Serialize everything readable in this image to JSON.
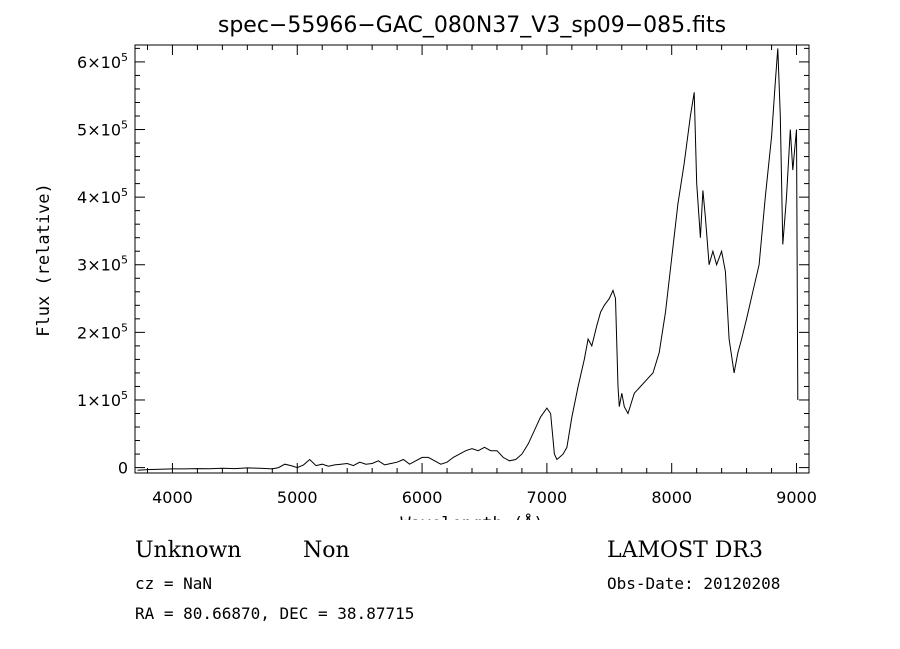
{
  "chart_data": {
    "type": "line",
    "title": "spec−55966−GAC_080N37_V3_sp09−085.fits",
    "xlabel": "Wavelength (Å)",
    "ylabel": "Flux (relative)",
    "xlim": [
      3700,
      9100
    ],
    "ylim": [
      -8000,
      625000
    ],
    "x_ticks": [
      {
        "value": 4000,
        "label": "4000"
      },
      {
        "value": 5000,
        "label": "5000"
      },
      {
        "value": 6000,
        "label": "6000"
      },
      {
        "value": 7000,
        "label": "7000"
      },
      {
        "value": 8000,
        "label": "8000"
      },
      {
        "value": 9000,
        "label": "9000"
      }
    ],
    "y_ticks": [
      {
        "value": 0,
        "mantissa": "0",
        "exp": ""
      },
      {
        "value": 100000,
        "mantissa": "1×10",
        "exp": "5"
      },
      {
        "value": 200000,
        "mantissa": "2×10",
        "exp": "5"
      },
      {
        "value": 300000,
        "mantissa": "3×10",
        "exp": "5"
      },
      {
        "value": 400000,
        "mantissa": "4×10",
        "exp": "5"
      },
      {
        "value": 500000,
        "mantissa": "5×10",
        "exp": "5"
      },
      {
        "value": 600000,
        "mantissa": "6×10",
        "exp": "5"
      }
    ],
    "grid": false,
    "series": [
      {
        "x": [
          3720,
          3800,
          3900,
          4000,
          4100,
          4200,
          4300,
          4400,
          4500,
          4600,
          4700,
          4800,
          4850,
          4900,
          4950,
          5000,
          5050,
          5100,
          5150,
          5200,
          5250,
          5300,
          5350,
          5400,
          5450,
          5500,
          5550,
          5600,
          5650,
          5700,
          5750,
          5800,
          5850,
          5900,
          5950,
          6000,
          6050,
          6100,
          6150,
          6200,
          6250,
          6300,
          6350,
          6400,
          6450,
          6500,
          6550,
          6600,
          6650,
          6700,
          6750,
          6800,
          6850,
          6900,
          6950,
          7000,
          7030,
          7060,
          7080,
          7100,
          7130,
          7160,
          7200,
          7250,
          7300,
          7330,
          7360,
          7400,
          7430,
          7460,
          7500,
          7530,
          7550,
          7570,
          7580,
          7600,
          7620,
          7650,
          7700,
          7750,
          7800,
          7850,
          7900,
          7950,
          8000,
          8050,
          8100,
          8150,
          8180,
          8200,
          8230,
          8250,
          8270,
          8300,
          8330,
          8360,
          8400,
          8430,
          8460,
          8500,
          8530,
          8560,
          8600,
          8650,
          8700,
          8750,
          8800,
          8830,
          8850,
          8870,
          8890,
          8920,
          8950,
          8970,
          9000,
          9010
        ],
        "y": [
          -4000,
          -3000,
          -2500,
          -2000,
          -2000,
          -1500,
          -1800,
          -1000,
          -1500,
          -500,
          -1000,
          -2000,
          0,
          5000,
          3000,
          0,
          4000,
          12000,
          3000,
          5000,
          2000,
          4000,
          5000,
          6000,
          3000,
          8000,
          5000,
          6000,
          10000,
          4000,
          6000,
          8000,
          12000,
          5000,
          10000,
          15000,
          15000,
          10000,
          5000,
          8000,
          15000,
          20000,
          25000,
          28000,
          25000,
          30000,
          25000,
          25000,
          15000,
          10000,
          12000,
          20000,
          35000,
          55000,
          75000,
          88000,
          80000,
          20000,
          12000,
          15000,
          20000,
          30000,
          75000,
          120000,
          160000,
          190000,
          180000,
          210000,
          230000,
          240000,
          250000,
          262000,
          250000,
          120000,
          90000,
          110000,
          90000,
          80000,
          110000,
          120000,
          130000,
          140000,
          170000,
          230000,
          310000,
          390000,
          450000,
          520000,
          555000,
          420000,
          340000,
          410000,
          370000,
          300000,
          320000,
          300000,
          320000,
          290000,
          190000,
          140000,
          170000,
          190000,
          220000,
          260000,
          300000,
          400000,
          490000,
          570000,
          620000,
          520000,
          330000,
          400000,
          500000,
          440000,
          500000,
          100000
        ]
      }
    ]
  },
  "footer": {
    "class_label": "Unknown",
    "subclass_label": "Non",
    "survey": "LAMOST DR3",
    "cz": "cz = NaN",
    "obs_date": "Obs-Date: 20120208",
    "coords": "RA =  80.66870, DEC =  38.87715"
  }
}
